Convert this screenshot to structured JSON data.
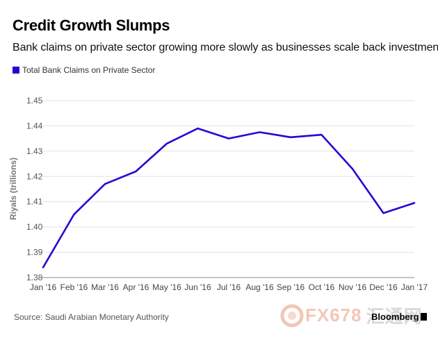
{
  "chart_data": {
    "type": "line",
    "title": "Credit Growth Slumps",
    "subtitle": "Bank claims on private sector growing more slowly as businesses scale back investment",
    "ylabel": "Riyals (trillions)",
    "xlabel": "",
    "categories": [
      "Jan '16",
      "Feb '16",
      "Mar '16",
      "Apr '16",
      "May '16",
      "Jun '16",
      "Jul '16",
      "Aug '16",
      "Sep '16",
      "Oct '16",
      "Nov '16",
      "Dec '16",
      "Jan '17"
    ],
    "series": [
      {
        "name": "Total Bank Claims on Private Sector",
        "color": "#2b00d4",
        "values": [
          1.384,
          1.405,
          1.417,
          1.422,
          1.433,
          1.439,
          1.435,
          1.4375,
          1.4355,
          1.4365,
          1.423,
          1.4055,
          1.4095
        ]
      }
    ],
    "ylim": [
      1.38,
      1.45
    ],
    "yticks": [
      "1.38",
      "1.39",
      "1.40",
      "1.41",
      "1.42",
      "1.43",
      "1.44",
      "1.45"
    ],
    "grid": true,
    "legend": "top-left",
    "source": "Source: Saudi Arabian Monetary Authority"
  },
  "watermark": {
    "text": "FX678",
    "tail": "汇通网"
  },
  "brand": {
    "text": "Bloomberg"
  }
}
